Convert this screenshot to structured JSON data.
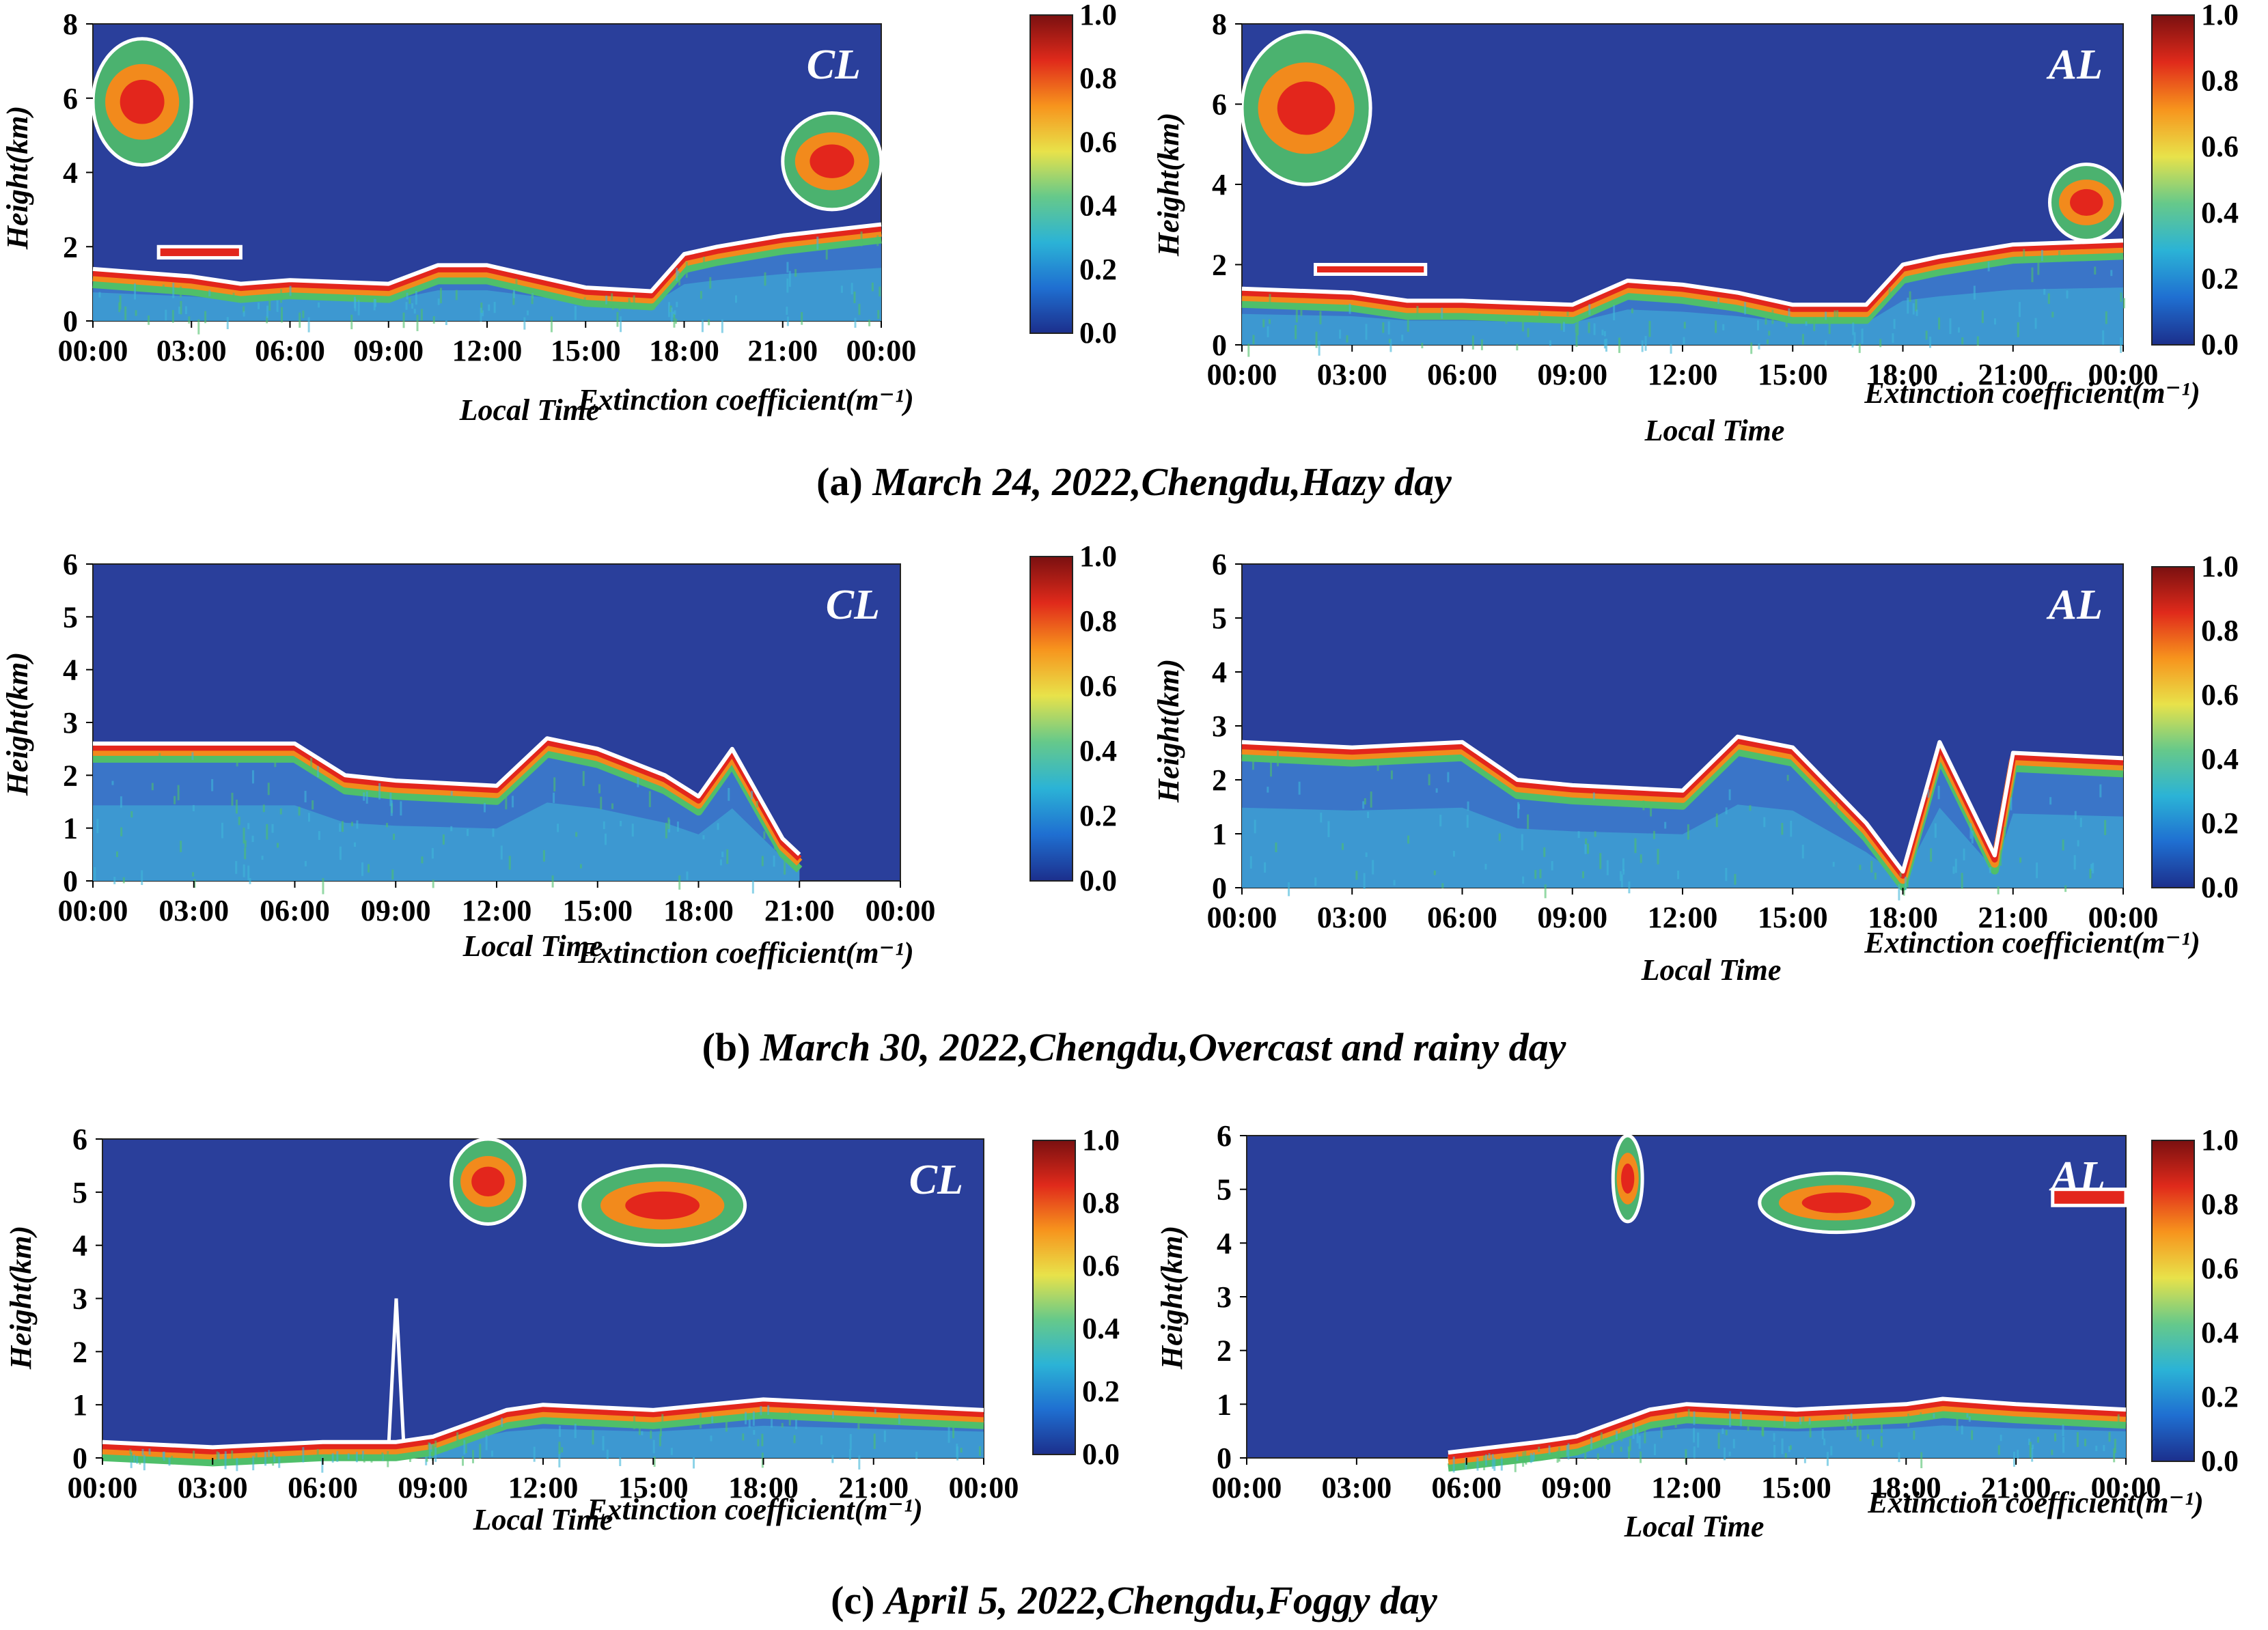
{
  "colorbar": {
    "ticks": [
      "0.0",
      "0.2",
      "0.4",
      "0.6",
      "0.8",
      "1.0"
    ],
    "stops": [
      "#1c2f8c",
      "#1f6fd1",
      "#2bb3d6",
      "#66c98a",
      "#e8e24a",
      "#f7941d",
      "#e02a1b",
      "#7a1010"
    ]
  },
  "colors": {
    "background": "#2a3f9b",
    "boundary": "#ffffff",
    "layer_red": "#e3261c",
    "layer_orange": "#f28a1c",
    "layer_green": "#4fbf6a",
    "layer_cyan": "#3fb5d9",
    "layer_lightblue": "#3d7fd0"
  },
  "captions": [
    {
      "letter": "(a)",
      "title": "March 24, 2022,Chengdu,Hazy day"
    },
    {
      "letter": "(b)",
      "title": "March 30, 2022,Chengdu,Overcast and rainy day"
    },
    {
      "letter": "(c)",
      "title": "April 5, 2022,Chengdu,Foggy day"
    }
  ],
  "chart_data": [
    {
      "type": "heatmap",
      "id": "a-CL",
      "panel_label": "CL",
      "xlabel": "Local Time",
      "ylabel": "Height(km)",
      "colorbar_label": "Extinction coefficient(m⁻¹)",
      "x_ticks": [
        "00:00",
        "03:00",
        "06:00",
        "09:00",
        "12:00",
        "15:00",
        "18:00",
        "21:00",
        "00:00"
      ],
      "y_ticks": [
        "0",
        "2",
        "4",
        "6",
        "8"
      ],
      "ylim": [
        0,
        8
      ],
      "xlim_hours": [
        0,
        24
      ],
      "boundary_top_km": {
        "hours": [
          0,
          3,
          4.5,
          6,
          9,
          10.5,
          12,
          13.5,
          15,
          17,
          18,
          19,
          21,
          24
        ],
        "km": [
          1.4,
          1.2,
          1.0,
          1.1,
          1.0,
          1.5,
          1.5,
          1.2,
          0.9,
          0.8,
          1.8,
          2.0,
          2.3,
          2.6
        ]
      },
      "aloft_features": [
        {
          "hours": [
            0,
            3
          ],
          "km": [
            4.2,
            7.6
          ],
          "kind": "cloud"
        },
        {
          "hours": [
            2,
            4.5
          ],
          "km": [
            1.7,
            2.0
          ],
          "kind": "layer"
        },
        {
          "hours": [
            21,
            24
          ],
          "km": [
            3.0,
            5.6
          ],
          "kind": "cloud"
        }
      ]
    },
    {
      "type": "heatmap",
      "id": "a-AL",
      "panel_label": "AL",
      "xlabel": "Local Time",
      "ylabel": "Height(km)",
      "colorbar_label": "Extinction coefficient(m⁻¹)",
      "x_ticks": [
        "00:00",
        "03:00",
        "06:00",
        "09:00",
        "12:00",
        "15:00",
        "18:00",
        "21:00",
        "00:00"
      ],
      "y_ticks": [
        "0",
        "2",
        "4",
        "6",
        "8"
      ],
      "ylim": [
        0,
        8
      ],
      "xlim_hours": [
        0,
        24
      ],
      "boundary_top_km": {
        "hours": [
          0,
          3,
          4.5,
          6,
          9,
          10.5,
          12,
          13.5,
          15,
          17,
          18,
          19,
          21,
          24
        ],
        "km": [
          1.4,
          1.3,
          1.1,
          1.1,
          1.0,
          1.6,
          1.5,
          1.3,
          1.0,
          1.0,
          2.0,
          2.2,
          2.5,
          2.6
        ]
      },
      "aloft_features": [
        {
          "hours": [
            0,
            3.5
          ],
          "km": [
            4.0,
            7.8
          ],
          "kind": "cloud"
        },
        {
          "hours": [
            2,
            5
          ],
          "km": [
            1.8,
            2.0
          ],
          "kind": "layer"
        },
        {
          "hours": [
            22,
            24
          ],
          "km": [
            2.6,
            4.5
          ],
          "kind": "cloud"
        }
      ]
    },
    {
      "type": "heatmap",
      "id": "b-CL",
      "panel_label": "CL",
      "xlabel": "Local Time",
      "ylabel": "Height(km)",
      "colorbar_label": "Extinction coefficient(m⁻¹)",
      "x_ticks": [
        "00:00",
        "03:00",
        "06:00",
        "09:00",
        "12:00",
        "15:00",
        "18:00",
        "21:00",
        "00:00"
      ],
      "y_ticks": [
        "0",
        "1",
        "2",
        "3",
        "4",
        "5",
        "6"
      ],
      "ylim": [
        0,
        6
      ],
      "xlim_hours": [
        0,
        24
      ],
      "boundary_top_km": {
        "hours": [
          0,
          3,
          6,
          7.5,
          9,
          12,
          13.5,
          15,
          17,
          18,
          19,
          20.5,
          21
        ],
        "km": [
          2.6,
          2.6,
          2.6,
          2.0,
          1.9,
          1.8,
          2.7,
          2.5,
          2.0,
          1.6,
          2.5,
          0.8,
          0.5
        ]
      }
    },
    {
      "type": "heatmap",
      "id": "b-AL",
      "panel_label": "AL",
      "xlabel": "Local Time",
      "ylabel": "Height(km)",
      "colorbar_label": "Extinction coefficient(m⁻¹)",
      "x_ticks": [
        "00:00",
        "03:00",
        "06:00",
        "09:00",
        "12:00",
        "15:00",
        "18:00",
        "21:00",
        "00:00"
      ],
      "y_ticks": [
        "0",
        "1",
        "2",
        "3",
        "4",
        "5",
        "6"
      ],
      "ylim": [
        0,
        6
      ],
      "xlim_hours": [
        0,
        24
      ],
      "boundary_top_km": {
        "hours": [
          0,
          3,
          6,
          7.5,
          9,
          12,
          13.5,
          15,
          17,
          18,
          19,
          20.5,
          21,
          24
        ],
        "km": [
          2.7,
          2.6,
          2.7,
          2.0,
          1.9,
          1.8,
          2.8,
          2.6,
          1.2,
          0.3,
          2.7,
          0.6,
          2.5,
          2.4
        ]
      }
    },
    {
      "type": "heatmap",
      "id": "c-CL",
      "panel_label": "CL",
      "xlabel": "Local Time",
      "ylabel": "Height(km)",
      "colorbar_label": "Extinction coefficient(m⁻¹)",
      "x_ticks": [
        "00:00",
        "03:00",
        "06:00",
        "09:00",
        "12:00",
        "15:00",
        "18:00",
        "21:00",
        "00:00"
      ],
      "y_ticks": [
        "0",
        "1",
        "2",
        "3",
        "4",
        "5",
        "6"
      ],
      "ylim": [
        0,
        6
      ],
      "xlim_hours": [
        0,
        24
      ],
      "boundary_top_km": {
        "hours": [
          0,
          3,
          6,
          8,
          9,
          11,
          12,
          15,
          18,
          21,
          24
        ],
        "km": [
          0.3,
          0.2,
          0.3,
          0.3,
          0.4,
          0.9,
          1.0,
          0.9,
          1.1,
          1.0,
          0.9
        ]
      },
      "aloft_features": [
        {
          "hours": [
            9.5,
            11.5
          ],
          "km": [
            4.4,
            6.0
          ],
          "kind": "cloud"
        },
        {
          "hours": [
            13,
            17.5
          ],
          "km": [
            4.0,
            5.5
          ],
          "kind": "cloud"
        },
        {
          "hours": [
            7.8,
            8.2
          ],
          "km": [
            0.3,
            3.0
          ],
          "kind": "plume"
        }
      ]
    },
    {
      "type": "heatmap",
      "id": "c-AL",
      "panel_label": "AL",
      "xlabel": "Local Time",
      "ylabel": "Height(km)",
      "colorbar_label": "Extinction coefficient(m⁻¹)",
      "x_ticks": [
        "00:00",
        "03:00",
        "06:00",
        "09:00",
        "12:00",
        "15:00",
        "18:00",
        "21:00",
        "00:00"
      ],
      "y_ticks": [
        "0",
        "1",
        "2",
        "3",
        "4",
        "5",
        "6"
      ],
      "ylim": [
        0,
        6
      ],
      "xlim_hours": [
        0,
        24
      ],
      "boundary_top_km": {
        "hours": [
          5.5,
          8,
          9,
          11,
          12,
          15,
          18,
          19,
          21,
          24
        ],
        "km": [
          0.1,
          0.3,
          0.4,
          0.9,
          1.0,
          0.9,
          1.0,
          1.1,
          1.0,
          0.9
        ]
      },
      "aloft_features": [
        {
          "hours": [
            10,
            10.8
          ],
          "km": [
            4.4,
            6.0
          ],
          "kind": "cloud"
        },
        {
          "hours": [
            14,
            18.2
          ],
          "km": [
            4.2,
            5.3
          ],
          "kind": "cloud"
        },
        {
          "hours": [
            22,
            24
          ],
          "km": [
            4.7,
            5.0
          ],
          "kind": "layer"
        }
      ]
    }
  ]
}
